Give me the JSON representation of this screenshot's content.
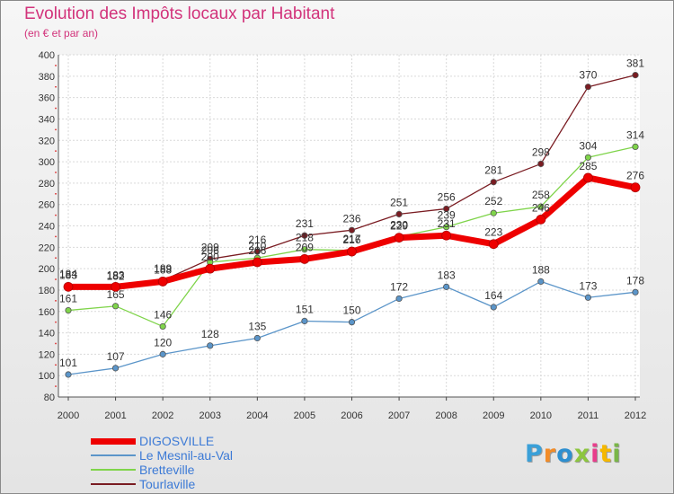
{
  "header": {
    "title": "Evolution des Impôts locaux par Habitant",
    "subtitle": "(en € et par an)"
  },
  "logo": {
    "letters": [
      "P",
      "r",
      "o",
      "x",
      "i",
      "t",
      "i"
    ],
    "colors": [
      "#3aa0d8",
      "#f28c28",
      "#2e8fd0",
      "#8dc63f",
      "#e83e8c",
      "#f5b800",
      "#7ab648"
    ]
  },
  "chart_data": {
    "type": "line",
    "title": "Evolution des Impôts locaux par Habitant",
    "subtitle": "(en € et par an)",
    "xlabel": "",
    "ylabel": "",
    "x": [
      "2000",
      "2001",
      "2002",
      "2003",
      "2004",
      "2005",
      "2006",
      "2007",
      "2008",
      "2009",
      "2010",
      "2011",
      "2012"
    ],
    "ylim": [
      80,
      400
    ],
    "yticks": [
      80,
      100,
      120,
      140,
      160,
      180,
      200,
      220,
      240,
      260,
      280,
      300,
      320,
      340,
      360,
      380,
      400
    ],
    "grid": true,
    "legend": "bottom-left",
    "series": [
      {
        "name": "Tourlaville",
        "color": "#7a1c22",
        "values": [
          184,
          182,
          189,
          209,
          216,
          231,
          236,
          251,
          256,
          281,
          298,
          370,
          381
        ],
        "labels": [
          "184",
          "182",
          "189",
          "209",
          "216",
          "231",
          "236",
          "251",
          "256",
          "281",
          "298",
          "370",
          "381"
        ]
      },
      {
        "name": "Bretteville",
        "color": "#7fd44a",
        "values": [
          161,
          165,
          146,
          206,
          210,
          218,
          217,
          230,
          239,
          252,
          258,
          304,
          314
        ],
        "labels": [
          "161",
          "165",
          "146",
          "206",
          "210",
          "218",
          "217",
          "230",
          "239",
          "252",
          "258",
          "304",
          "314"
        ]
      },
      {
        "name": "Le Mesnil-au-Val",
        "color": "#5b95c9",
        "values": [
          101,
          107,
          120,
          128,
          135,
          151,
          150,
          172,
          183,
          164,
          188,
          173,
          178
        ],
        "labels": [
          "101",
          "107",
          "120",
          "128",
          "135",
          "151",
          "150",
          "172",
          "183",
          "164",
          "188",
          "173",
          "178"
        ]
      },
      {
        "name": "DIGOSVILLE",
        "color": "#ee0000",
        "values": [
          183,
          183,
          188,
          200,
          206,
          209,
          216,
          229,
          231,
          223,
          246,
          285,
          276
        ],
        "labels": [
          "183",
          "183",
          "188",
          "200",
          "206",
          "209",
          "216",
          "229",
          "231",
          "223",
          "246",
          "285",
          "276"
        ]
      }
    ],
    "legend_order": [
      "DIGOSVILLE",
      "Le Mesnil-au-Val",
      "Bretteville",
      "Tourlaville"
    ]
  }
}
